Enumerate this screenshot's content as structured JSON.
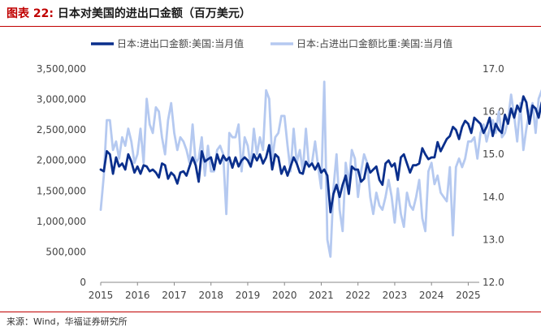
{
  "figure": {
    "label": "图表 22:",
    "title": "日本对美国的进出口金额（百万美元）",
    "source": "来源：Wind，华福证券研究所"
  },
  "colors": {
    "series1": "#0a2f8c",
    "series2": "#b5c9f0",
    "accent": "#c00000"
  },
  "chart_data": {
    "type": "line",
    "title": "日本对美国的进出口金额（百万美元）",
    "xlabel": "",
    "ylabel": "",
    "x_ticks": [
      "2015",
      "2016",
      "2017",
      "2018",
      "2019",
      "2020",
      "2021",
      "2022",
      "2023",
      "2024",
      "2025"
    ],
    "x_range": [
      2015,
      2025.3
    ],
    "y_left": {
      "range": [
        0,
        3500000
      ],
      "ticks": [
        0,
        500000,
        1000000,
        1500000,
        2000000,
        2500000,
        3000000,
        3500000
      ],
      "tick_labels": [
        "0",
        "500,000",
        "1,000,000",
        "1,500,000",
        "2,000,000",
        "2,500,000",
        "3,000,000",
        "3,500,000"
      ]
    },
    "y_right": {
      "range": [
        12.0,
        17.0
      ],
      "ticks": [
        12,
        13,
        14,
        15,
        16,
        17
      ],
      "tick_labels": [
        "12.0",
        "13.0",
        "14.0",
        "15.0",
        "16.0",
        "17.0"
      ]
    },
    "legend": "top",
    "series": [
      {
        "name": "日本:进出口金额:美国:当月值",
        "axis": "left",
        "x_start": 2015.0,
        "step": 0.08333,
        "values": [
          1850000,
          1820000,
          2150000,
          2100000,
          1780000,
          2050000,
          1900000,
          1950000,
          1850000,
          2100000,
          1980000,
          1800000,
          1900000,
          1780000,
          1920000,
          1900000,
          1820000,
          1850000,
          1800000,
          1720000,
          1950000,
          1920000,
          1700000,
          1800000,
          1750000,
          1620000,
          1800000,
          1820000,
          1750000,
          1900000,
          2050000,
          1920000,
          1650000,
          2150000,
          1980000,
          2020000,
          2050000,
          1850000,
          2100000,
          1950000,
          2080000,
          2000000,
          2050000,
          1880000,
          2050000,
          1900000,
          2000000,
          2050000,
          2000000,
          1900000,
          2100000,
          2000000,
          2100000,
          1950000,
          2050000,
          2250000,
          1850000,
          2100000,
          2050000,
          1780000,
          1900000,
          1750000,
          1900000,
          2050000,
          1950000,
          1800000,
          1780000,
          1980000,
          1900000,
          1950000,
          1850000,
          1950000,
          1800000,
          1850000,
          1750000,
          1150000,
          1450000,
          1600000,
          1400000,
          1600000,
          1750000,
          1450000,
          1900000,
          1850000,
          1850000,
          1650000,
          1700000,
          1950000,
          1800000,
          1850000,
          1900000,
          1680000,
          1600000,
          1950000,
          2000000,
          1900000,
          1950000,
          1680000,
          2050000,
          2100000,
          1950000,
          1800000,
          1920000,
          1920000,
          1950000,
          2200000,
          2100000,
          2020000,
          2050000,
          2050000,
          2300000,
          2150000,
          2250000,
          2350000,
          2400000,
          2550000,
          2500000,
          2350000,
          2550000,
          2650000,
          2600000,
          2450000,
          2700000,
          2650000,
          2600000,
          2450000,
          2550000,
          2700000,
          2400000,
          2600000,
          2500000,
          2450000,
          2750000,
          2600000,
          2850000,
          2700000,
          2900000,
          2800000,
          3050000,
          2950000,
          2600000,
          2900000,
          2850000,
          2700000,
          2950000,
          2800000,
          3000000,
          2850000,
          3050000,
          2850000,
          2700000,
          2900000,
          3050000,
          2650000,
          2950000,
          2900000
        ]
      },
      {
        "name": "日本:占进出口金额比重:美国:当月值",
        "axis": "right",
        "x_start": 2015.0,
        "step": 0.08333,
        "values": [
          13.7,
          14.5,
          15.8,
          15.8,
          15.1,
          15.3,
          14.9,
          15.4,
          15.2,
          15.6,
          15.3,
          14.8,
          15.0,
          15.6,
          14.8,
          16.3,
          15.7,
          15.5,
          16.1,
          16.0,
          15.4,
          15.0,
          15.8,
          16.2,
          15.5,
          15.1,
          15.4,
          15.3,
          15.1,
          14.8,
          15.7,
          14.8,
          14.9,
          15.4,
          14.5,
          15.2,
          14.6,
          14.6,
          15.1,
          15.2,
          15.0,
          13.6,
          15.5,
          15.4,
          15.4,
          15.7,
          14.6,
          15.4,
          15.2,
          14.7,
          15.6,
          15.0,
          15.4,
          15.1,
          16.5,
          16.3,
          14.9,
          15.4,
          15.5,
          15.9,
          15.9,
          15.2,
          14.6,
          15.6,
          14.8,
          15.1,
          14.6,
          15.6,
          14.7,
          14.8,
          15.3,
          14.7,
          14.2,
          16.7,
          13.0,
          12.6,
          14.2,
          15.0,
          13.7,
          13.2,
          14.8,
          14.3,
          15.1,
          14.9,
          14.0,
          14.6,
          15.0,
          14.8,
          14.0,
          13.6,
          14.1,
          13.8,
          13.7,
          14.0,
          14.4,
          14.0,
          13.4,
          14.2,
          13.6,
          13.3,
          14.1,
          13.8,
          13.7,
          14.0,
          14.4,
          13.5,
          13.2,
          14.6,
          14.8,
          14.3,
          14.5,
          14.1,
          14.0,
          13.9,
          14.7,
          13.1,
          14.7,
          14.9,
          14.7,
          14.9,
          15.3,
          15.3,
          15.4,
          14.9,
          15.5,
          15.7,
          15.3,
          15.6,
          15.8,
          15.5,
          16.0,
          15.4,
          15.5,
          15.8,
          16.4,
          15.9,
          15.3,
          16.2,
          15.1,
          15.6,
          16.0,
          16.2,
          15.5,
          16.3,
          16.5,
          15.1,
          16.4,
          15.9,
          14.6,
          16.1,
          16.3,
          16.0,
          15.6,
          14.1,
          16.2,
          16.0
        ]
      }
    ]
  }
}
